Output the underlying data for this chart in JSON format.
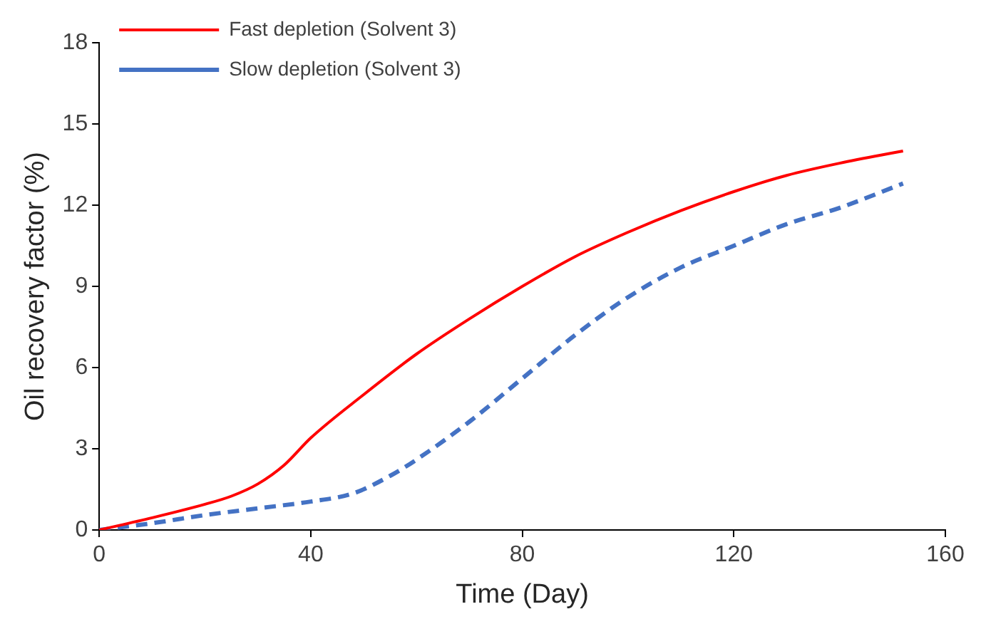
{
  "chart_data": {
    "type": "line",
    "xlabel": "Time (Day)",
    "ylabel": "Oil recovery factor (%)",
    "xlim": [
      0,
      160
    ],
    "xticks": [
      0,
      40,
      80,
      120,
      160
    ],
    "ylim": [
      0,
      18
    ],
    "yticks": [
      0,
      3,
      6,
      9,
      12,
      15,
      18
    ],
    "grid": false,
    "legend": "top left",
    "marker": "none",
    "series": [
      {
        "name": "Fast depletion (Solvent 3)",
        "color": "#ff0000",
        "line_style": "solid",
        "x": [
          0,
          10,
          20,
          25,
          30,
          35,
          40,
          50,
          60,
          70,
          80,
          90,
          100,
          110,
          120,
          130,
          140,
          152
        ],
        "values": [
          0,
          0.45,
          0.95,
          1.25,
          1.7,
          2.4,
          3.4,
          5.0,
          6.5,
          7.8,
          9.0,
          10.1,
          11.0,
          11.8,
          12.5,
          13.1,
          13.55,
          14.0
        ]
      },
      {
        "name": "Slow depletion (Solvent 3)",
        "color": "#4472c4",
        "line_style": "dashed",
        "x": [
          0,
          10,
          20,
          30,
          40,
          48,
          55,
          60,
          70,
          80,
          90,
          100,
          110,
          120,
          130,
          140,
          152
        ],
        "values": [
          0,
          0.25,
          0.55,
          0.8,
          1.05,
          1.35,
          2.0,
          2.6,
          4.0,
          5.6,
          7.2,
          8.6,
          9.7,
          10.5,
          11.3,
          11.9,
          12.8
        ]
      }
    ]
  }
}
